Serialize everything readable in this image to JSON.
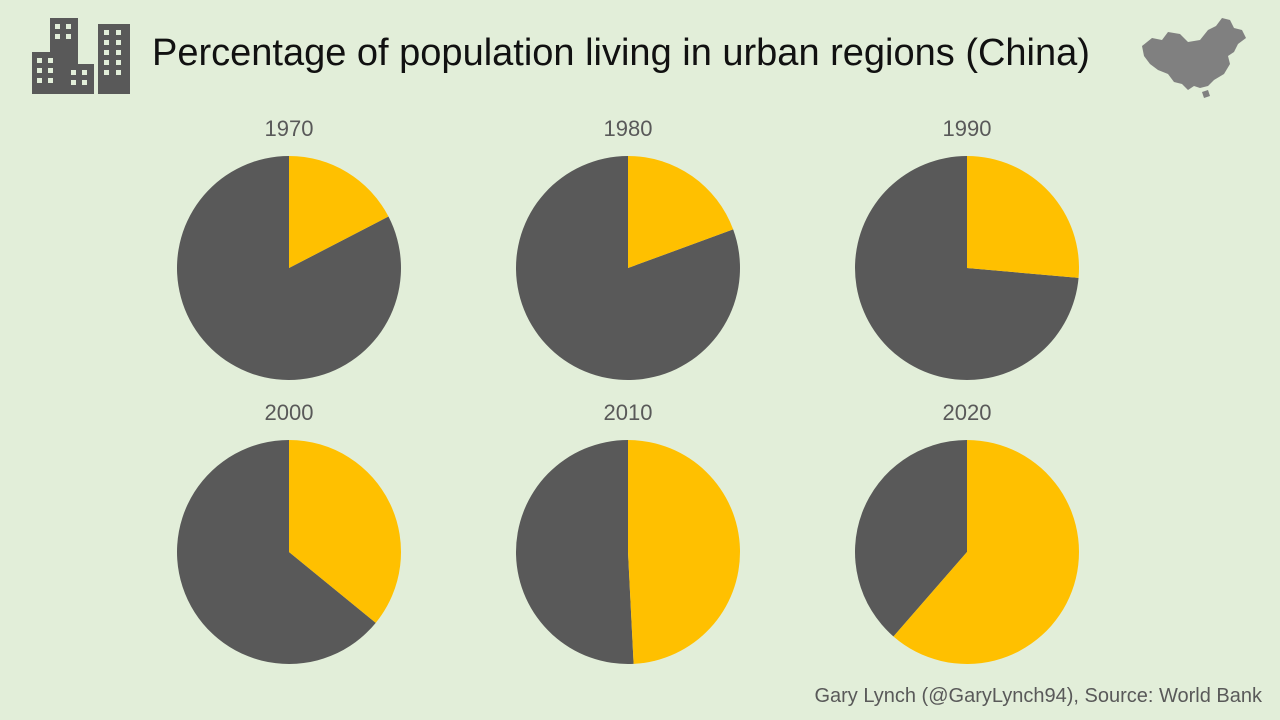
{
  "header": {
    "title": "Percentage of population living in urban regions (China)"
  },
  "icons": {
    "left": "city-buildings-icon",
    "right": "china-map-icon"
  },
  "colors": {
    "background": "#e2eed9",
    "urban": "#ffc000",
    "rural": "#595959",
    "text": "#595959"
  },
  "chart_data": {
    "type": "pie",
    "title": "Percentage of population living in urban regions (China)",
    "categories": [
      "1970",
      "1980",
      "1990",
      "2000",
      "2010",
      "2020"
    ],
    "series": [
      {
        "values": [
          17.4,
          19.4,
          26.4,
          35.9,
          49.2,
          61.4
        ]
      },
      {
        "values": [
          82.6,
          80.6,
          73.6,
          64.1,
          50.8,
          38.6
        ]
      }
    ]
  },
  "footer": {
    "credit": "Gary Lynch (@GaryLynch94), Source: World Bank"
  }
}
